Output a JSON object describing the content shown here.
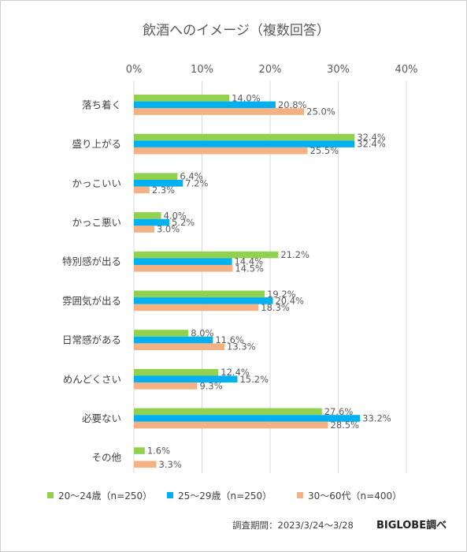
{
  "chart_data": {
    "type": "bar",
    "orientation": "horizontal",
    "title": "飲酒へのイメージ（複数回答）",
    "xlim": [
      0,
      40
    ],
    "xticks": [
      "0%",
      "10%",
      "20%",
      "30%",
      "40%"
    ],
    "grid": "vertical",
    "legend_position": "bottom",
    "categories": [
      "落ち着く",
      "盛り上がる",
      "かっこいい",
      "かっこ悪い",
      "特別感が出る",
      "雰囲気が出る",
      "日常感がある",
      "めんどくさい",
      "必要ない",
      "その他"
    ],
    "series": [
      {
        "name": "20～24歳（n=250）",
        "color": "#92d050",
        "values": [
          14.0,
          32.4,
          6.4,
          4.0,
          21.2,
          19.2,
          8.0,
          12.4,
          27.6,
          1.6
        ],
        "labels": [
          "14.0%",
          "32.4%",
          "6.4%",
          "4.0%",
          "21.2%",
          "19.2%",
          "8.0%",
          "12.4%",
          "27.6%",
          "1.6%"
        ]
      },
      {
        "name": "25～29歳（n=250）",
        "color": "#00b0f0",
        "values": [
          20.8,
          32.4,
          7.2,
          5.2,
          14.4,
          20.4,
          11.6,
          15.2,
          33.2,
          null
        ],
        "labels": [
          "20.8%",
          "32.4%",
          "7.2%",
          "5.2%",
          "14.4%",
          "20.4%",
          "11.6%",
          "15.2%",
          "33.2%",
          ""
        ]
      },
      {
        "name": "30～60代（n=400）",
        "color": "#f4b183",
        "values": [
          25.0,
          25.5,
          2.3,
          3.0,
          14.5,
          18.3,
          13.3,
          9.3,
          28.5,
          3.3
        ],
        "labels": [
          "25.0%",
          "25.5%",
          "2.3%",
          "3.0%",
          "14.5%",
          "18.3%",
          "13.3%",
          "9.3%",
          "28.5%",
          "3.3%"
        ]
      }
    ]
  },
  "footer": {
    "period": "調査期間：2023/3/24～3/28",
    "brand": "BIGLOBE調べ"
  },
  "colors": {
    "grid": "#d9d9d9",
    "frame": "#cfcfcf"
  }
}
